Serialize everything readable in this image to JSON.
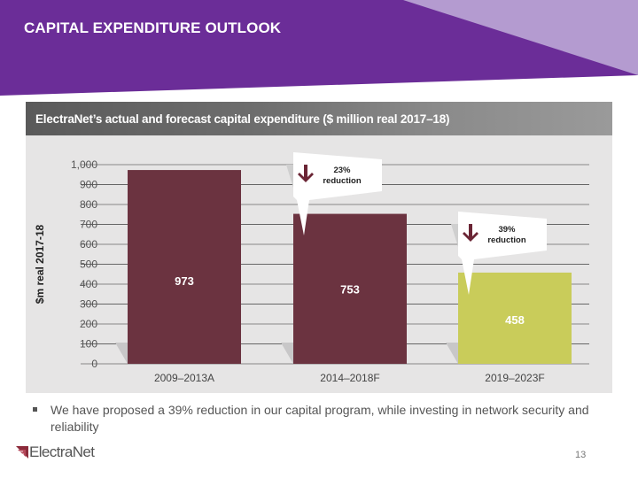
{
  "slide": {
    "title": "CAPITAL EXPENDITURE OUTLOOK",
    "page_number": "13",
    "colors": {
      "header_purple": "#6b2d98",
      "header_lavender": "#b49bd0"
    }
  },
  "bullet": {
    "text": "We have proposed a 39% reduction in our capital program, while investing in network security and reliability"
  },
  "logo": {
    "text": "ElectraNet",
    "icon": "electranet-logo-icon"
  },
  "chart_data": {
    "type": "bar",
    "title": "ElectraNet’s actual and forecast capital expenditure ($ million real 2017–18)",
    "xlabel": "",
    "ylabel": "$m real 2017-18",
    "ylim": [
      0,
      1000
    ],
    "yticks": [
      0,
      100,
      200,
      300,
      400,
      500,
      600,
      700,
      800,
      900,
      1000
    ],
    "ytick_labels": [
      "0",
      "100",
      "200",
      "300",
      "400",
      "500",
      "600",
      "700",
      "800",
      "900",
      "1,000"
    ],
    "grid": true,
    "categories": [
      "2009–2013A",
      "2014–2018F",
      "2019–2023F"
    ],
    "values": [
      973,
      753,
      458
    ],
    "value_labels": [
      "973",
      "753",
      "458"
    ],
    "bar_colors": [
      "#6b3340",
      "#6b3340",
      "#c9cc5a"
    ],
    "annotations": [
      {
        "category": "2014–2018F",
        "line1": "23%",
        "line2": "reduction",
        "icon": "arrow-down-icon"
      },
      {
        "category": "2019–2023F",
        "line1": "39%",
        "line2": "reduction",
        "icon": "arrow-down-icon"
      }
    ]
  }
}
